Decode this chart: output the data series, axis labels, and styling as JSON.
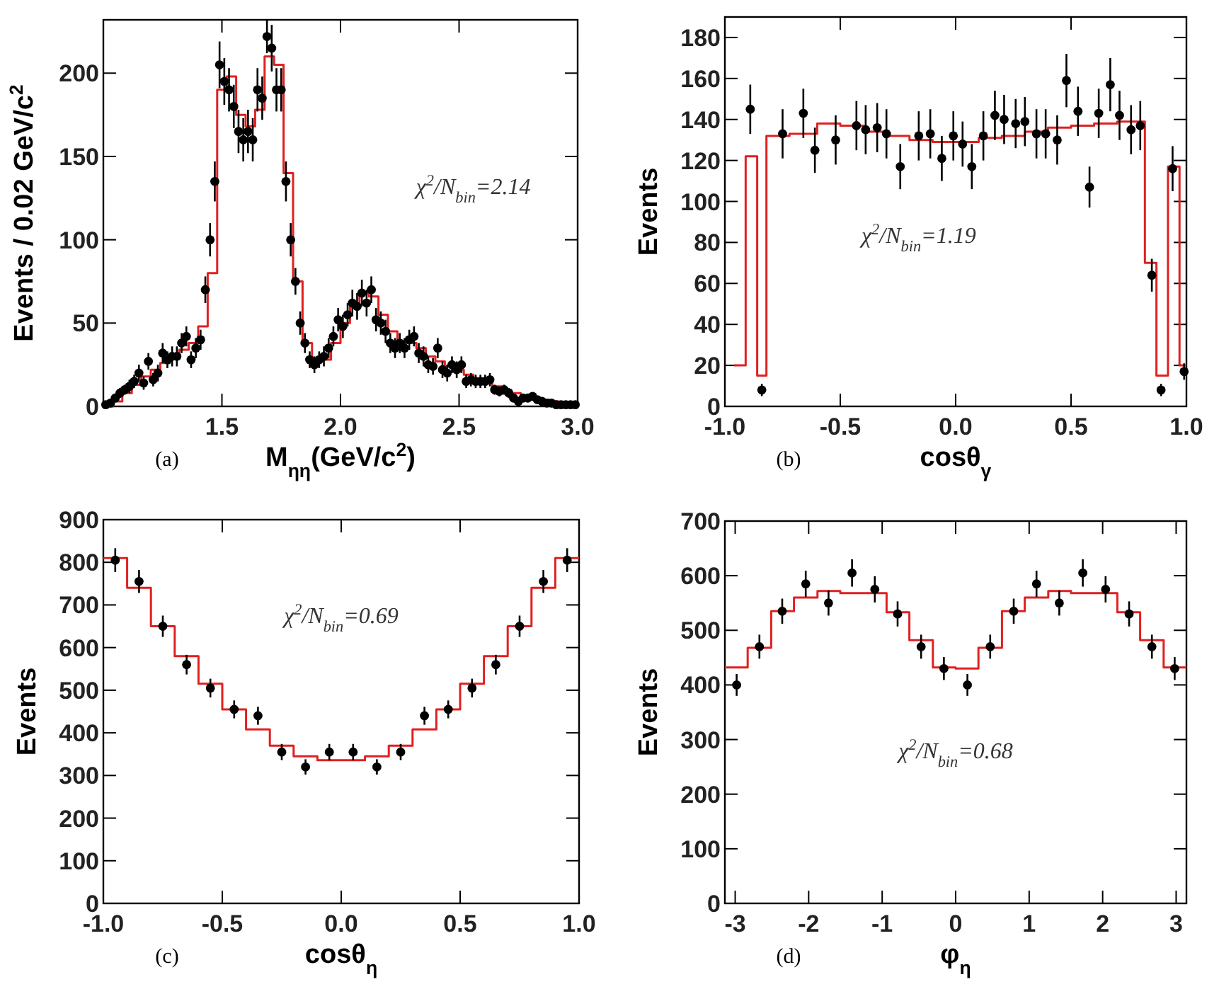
{
  "chart_data": [
    {
      "type": "scatter",
      "xlabel": "M$_{ηη}$(GeV/c$^{2}$)",
      "ylabel": "Events / 0.02 GeV/c$^{2}$",
      "xlim": [
        1.0,
        3.0
      ],
      "xticks": [
        {
          "value": 1.5,
          "label": "1.5"
        },
        {
          "value": 2.0,
          "label": "2.0"
        },
        {
          "value": 2.5,
          "label": "2.5"
        },
        {
          "value": 3.0,
          "label": "3.0"
        }
      ],
      "ylim": [
        0,
        232
      ],
      "yticks": [
        0,
        50,
        100,
        150,
        200
      ],
      "annotations": [
        "(a)",
        "χ$^{2}$/N$_{bin}$=2.14"
      ],
      "series": [
        {
          "type": "step",
          "color": "#e02020",
          "x": [
            1.0,
            1.04,
            1.08,
            1.12,
            1.16,
            1.2,
            1.24,
            1.28,
            1.32,
            1.36,
            1.4,
            1.44,
            1.48,
            1.52,
            1.56,
            1.6,
            1.64,
            1.68,
            1.72,
            1.76,
            1.8,
            1.84,
            1.88,
            1.92,
            1.96,
            2.0,
            2.04,
            2.08,
            2.12,
            2.16,
            2.2,
            2.24,
            2.28,
            2.32,
            2.36,
            2.4,
            2.44,
            2.48,
            2.52,
            2.56,
            2.6,
            2.64,
            2.68,
            2.72,
            2.76,
            2.8,
            2.84,
            2.88,
            2.92
          ],
          "values": [
            0,
            3,
            8,
            13,
            18,
            22,
            26,
            30,
            34,
            38,
            48,
            80,
            190,
            198,
            175,
            168,
            178,
            210,
            205,
            140,
            75,
            38,
            27,
            28,
            38,
            50,
            60,
            68,
            66,
            55,
            45,
            38,
            38,
            35,
            30,
            27,
            24,
            22,
            19,
            16,
            14,
            12,
            10,
            8,
            6,
            5,
            4,
            3,
            2
          ]
        },
        {
          "marker": "circle",
          "color": "#000000",
          "x": [
            1.01,
            1.03,
            1.05,
            1.07,
            1.09,
            1.11,
            1.13,
            1.15,
            1.17,
            1.19,
            1.21,
            1.23,
            1.25,
            1.27,
            1.29,
            1.31,
            1.33,
            1.35,
            1.37,
            1.39,
            1.41,
            1.43,
            1.45,
            1.47,
            1.49,
            1.51,
            1.53,
            1.55,
            1.57,
            1.59,
            1.61,
            1.63,
            1.65,
            1.67,
            1.69,
            1.71,
            1.73,
            1.75,
            1.77,
            1.79,
            1.81,
            1.83,
            1.85,
            1.87,
            1.89,
            1.91,
            1.93,
            1.95,
            1.97,
            1.99,
            2.01,
            2.03,
            2.05,
            2.07,
            2.09,
            2.11,
            2.13,
            2.15,
            2.17,
            2.19,
            2.21,
            2.23,
            2.25,
            2.27,
            2.29,
            2.31,
            2.33,
            2.35,
            2.37,
            2.39,
            2.41,
            2.43,
            2.45,
            2.47,
            2.49,
            2.51,
            2.53,
            2.55,
            2.57,
            2.59,
            2.61,
            2.63,
            2.65,
            2.67,
            2.69,
            2.71,
            2.73,
            2.75,
            2.77,
            2.79,
            2.81,
            2.83,
            2.85,
            2.87,
            2.89,
            2.91,
            2.93,
            2.95,
            2.97,
            2.99
          ],
          "values": [
            1,
            2,
            5,
            8,
            10,
            12,
            15,
            20,
            14,
            27,
            16,
            20,
            32,
            28,
            30,
            30,
            38,
            42,
            28,
            35,
            40,
            70,
            100,
            135,
            205,
            195,
            190,
            180,
            165,
            160,
            165,
            160,
            190,
            185,
            222,
            215,
            190,
            190,
            135,
            100,
            75,
            50,
            38,
            28,
            25,
            28,
            30,
            35,
            42,
            52,
            48,
            55,
            62,
            60,
            68,
            62,
            70,
            52,
            50,
            45,
            38,
            35,
            38,
            35,
            40,
            42,
            32,
            30,
            25,
            24,
            35,
            22,
            20,
            25,
            22,
            25,
            15,
            16,
            15,
            15,
            15,
            16,
            10,
            9,
            10,
            8,
            5,
            3,
            5,
            5,
            6,
            4,
            3,
            2,
            2,
            1,
            1,
            1,
            1,
            1
          ],
          "errors": [
            1,
            2,
            2,
            3,
            3,
            4,
            4,
            5,
            4,
            5,
            4,
            5,
            6,
            5,
            6,
            6,
            6,
            6,
            5,
            6,
            6,
            8,
            10,
            12,
            14,
            14,
            13,
            13,
            13,
            13,
            13,
            13,
            13,
            13,
            10,
            14,
            13,
            13,
            12,
            10,
            8,
            7,
            6,
            5,
            5,
            5,
            6,
            6,
            6,
            7,
            7,
            7,
            8,
            8,
            8,
            8,
            8,
            7,
            7,
            7,
            6,
            6,
            6,
            6,
            6,
            6,
            6,
            6,
            5,
            5,
            6,
            5,
            5,
            5,
            5,
            5,
            4,
            4,
            4,
            4,
            4,
            4,
            3,
            3,
            3,
            3,
            2,
            2,
            2,
            2,
            2,
            2,
            2,
            1,
            1,
            1,
            1,
            1,
            1,
            1
          ]
        }
      ]
    },
    {
      "type": "scatter",
      "xlabel": "cosθ$_{γ}$",
      "ylabel": "Events",
      "xlim": [
        -1.0,
        1.0
      ],
      "xticks": [
        {
          "value": -1.0,
          "label": "-1.0"
        },
        {
          "value": -0.5,
          "label": "-0.5"
        },
        {
          "value": 0.0,
          "label": "0.0"
        },
        {
          "value": 0.5,
          "label": "0.5"
        },
        {
          "value": 1.0,
          "label": "1.0"
        }
      ],
      "ylim": [
        0,
        190
      ],
      "yticks": [
        0,
        20,
        40,
        60,
        80,
        100,
        120,
        140,
        160,
        180
      ],
      "annotations": [
        "(b)",
        "χ$^{2}$/N$_{bin}$=1.19"
      ],
      "series": [
        {
          "type": "step",
          "color": "#e02020",
          "x": [
            -0.96,
            -0.91,
            -0.86,
            -0.82,
            -0.72,
            -0.6,
            -0.5,
            -0.4,
            -0.3,
            -0.2,
            -0.1,
            0.1,
            0.2,
            0.3,
            0.4,
            0.5,
            0.6,
            0.7,
            0.82,
            0.87,
            0.92,
            0.97,
            1.0
          ],
          "values": [
            20,
            122,
            15,
            132,
            133,
            138,
            137,
            134,
            132,
            130,
            129,
            131,
            132,
            134,
            136,
            137,
            138,
            139,
            70,
            15,
            117,
            20,
            20
          ]
        },
        {
          "marker": "circle",
          "color": "#000000",
          "x": [
            -0.89,
            -0.84,
            -0.75,
            -0.66,
            -0.61,
            -0.52,
            -0.43,
            -0.39,
            -0.34,
            -0.3,
            -0.24,
            -0.16,
            -0.11,
            -0.06,
            -0.01,
            0.03,
            0.07,
            0.12,
            0.17,
            0.21,
            0.26,
            0.3,
            0.35,
            0.39,
            0.44,
            0.48,
            0.53,
            0.58,
            0.62,
            0.67,
            0.71,
            0.76,
            0.8,
            0.85,
            0.89,
            0.94,
            0.99
          ],
          "values": [
            145,
            8,
            133,
            143,
            125,
            130,
            137,
            135,
            136,
            133,
            117,
            132,
            133,
            121,
            132,
            128,
            117,
            132,
            142,
            140,
            138,
            139,
            133,
            133,
            130,
            159,
            144,
            107,
            143,
            157,
            142,
            135,
            137,
            64,
            8,
            116,
            17
          ],
          "errors": [
            12,
            3,
            12,
            12,
            11,
            12,
            12,
            12,
            12,
            12,
            11,
            12,
            12,
            11,
            12,
            11,
            11,
            12,
            12,
            12,
            12,
            12,
            12,
            12,
            12,
            13,
            12,
            10,
            12,
            13,
            12,
            12,
            12,
            8,
            3,
            11,
            4
          ]
        }
      ]
    },
    {
      "type": "scatter",
      "xlabel": "cosθ$_{η}$",
      "ylabel": "Events",
      "xlim": [
        -1.0,
        1.0
      ],
      "xticks": [
        {
          "value": -1.0,
          "label": "-1.0"
        },
        {
          "value": -0.5,
          "label": "-0.5"
        },
        {
          "value": 0.0,
          "label": "0.0"
        },
        {
          "value": 0.5,
          "label": "0.5"
        },
        {
          "value": 1.0,
          "label": "1.0"
        }
      ],
      "ylim": [
        0,
        900
      ],
      "yticks": [
        0,
        100,
        200,
        300,
        400,
        500,
        600,
        700,
        800,
        900
      ],
      "annotations": [
        "(c)",
        "χ$^{2}$/N$_{bin}$=0.69"
      ],
      "series": [
        {
          "type": "step",
          "color": "#e02020",
          "x": [
            -1.0,
            -0.9,
            -0.8,
            -0.7,
            -0.6,
            -0.5,
            -0.4,
            -0.3,
            -0.2,
            -0.1,
            0.0,
            0.1,
            0.2,
            0.3,
            0.4,
            0.5,
            0.6,
            0.7,
            0.8,
            0.9,
            1.0
          ],
          "values": [
            810,
            740,
            650,
            580,
            515,
            455,
            408,
            370,
            345,
            336,
            336,
            345,
            370,
            408,
            455,
            515,
            580,
            650,
            740,
            810,
            810
          ]
        },
        {
          "marker": "circle",
          "color": "#000000",
          "x": [
            -0.95,
            -0.85,
            -0.75,
            -0.65,
            -0.55,
            -0.45,
            -0.35,
            -0.25,
            -0.15,
            -0.05,
            0.05,
            0.15,
            0.25,
            0.35,
            0.45,
            0.55,
            0.65,
            0.75,
            0.85,
            0.95
          ],
          "values": [
            805,
            755,
            650,
            560,
            505,
            455,
            440,
            355,
            320,
            355,
            355,
            320,
            355,
            440,
            455,
            505,
            560,
            650,
            755,
            805
          ],
          "errors": [
            28,
            27,
            25,
            23,
            22,
            21,
            21,
            19,
            18,
            19,
            19,
            18,
            19,
            21,
            21,
            22,
            23,
            25,
            27,
            28
          ]
        }
      ]
    },
    {
      "type": "scatter",
      "xlabel": "φ$_{η}$",
      "ylabel": "Events",
      "xlim": [
        -3.14,
        3.14
      ],
      "xticks": [
        -3,
        -2,
        -1,
        0,
        1,
        2,
        3
      ],
      "ylim": [
        0,
        700
      ],
      "yticks": [
        0,
        100,
        200,
        300,
        400,
        500,
        600,
        700
      ],
      "annotations": [
        "(d)",
        "χ$^{2}$/N$_{bin}$=0.68"
      ],
      "series": [
        {
          "type": "step",
          "color": "#e02020",
          "x": [
            -3.14,
            -2.83,
            -2.51,
            -2.2,
            -1.88,
            -1.57,
            -1.26,
            -0.94,
            -0.63,
            -0.31,
            0,
            0.31,
            0.63,
            0.94,
            1.26,
            1.57,
            1.88,
            2.2,
            2.51,
            2.83,
            3.14
          ],
          "values": [
            432,
            468,
            535,
            560,
            572,
            568,
            568,
            533,
            482,
            432,
            430,
            468,
            535,
            560,
            572,
            568,
            568,
            533,
            482,
            432,
            432
          ]
        },
        {
          "marker": "circle",
          "color": "#000000",
          "x": [
            -2.98,
            -2.67,
            -2.36,
            -2.04,
            -1.73,
            -1.41,
            -1.1,
            -0.79,
            -0.47,
            -0.16,
            0.16,
            0.47,
            0.79,
            1.1,
            1.41,
            1.73,
            2.04,
            2.36,
            2.67,
            2.98
          ],
          "values": [
            400,
            470,
            535,
            585,
            550,
            605,
            575,
            530,
            470,
            430,
            400,
            470,
            535,
            585,
            550,
            605,
            575,
            530,
            470,
            430
          ],
          "errors": [
            20,
            22,
            23,
            24,
            23,
            25,
            24,
            23,
            22,
            21,
            20,
            22,
            23,
            24,
            23,
            25,
            24,
            23,
            22,
            21
          ]
        }
      ]
    }
  ]
}
